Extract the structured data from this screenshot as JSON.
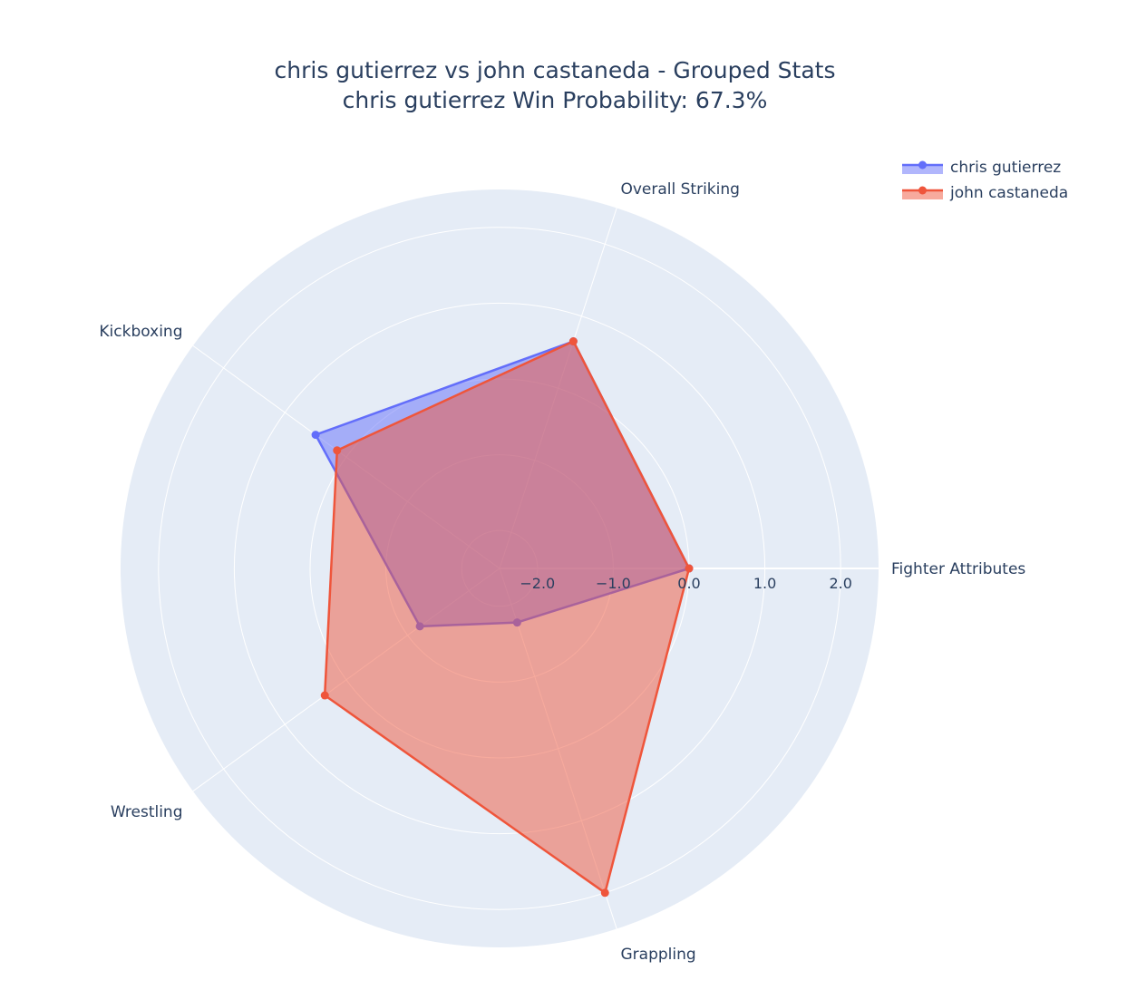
{
  "chart_data": {
    "type": "radar",
    "title": "chris gutierrez vs john castaneda - Grouped Stats",
    "subtitle": "chris gutierrez Win Probability: 67.3%",
    "categories": [
      "Fighter Attributes",
      "Overall Striking",
      "Kickboxing",
      "Wrestling",
      "Grappling"
    ],
    "radial_axis": {
      "range": [
        -2.5,
        2.5
      ],
      "ticks": [
        -2.0,
        -1.0,
        0.0,
        1.0,
        2.0
      ],
      "tick_labels": [
        "−2.0",
        "−1.0",
        "0.0",
        "1.0",
        "2.0"
      ]
    },
    "series": [
      {
        "name": "chris gutierrez",
        "color": "#636efa",
        "values": [
          0.0,
          0.65,
          0.5,
          -1.2,
          -1.75
        ]
      },
      {
        "name": "john castaneda",
        "color": "#ef553b",
        "values": [
          0.0,
          0.65,
          0.15,
          0.35,
          2.0
        ]
      }
    ],
    "legend_position": "top-right",
    "grid": true
  }
}
